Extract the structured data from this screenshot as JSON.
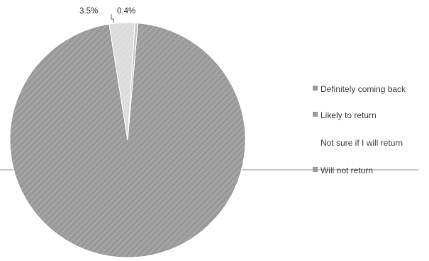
{
  "chart_data": {
    "type": "pie",
    "title": "",
    "start_angle_deg": 5,
    "slices": [
      {
        "label": "Definitely coming back",
        "value": 0.0,
        "display": "",
        "color": "#a5a5a5"
      },
      {
        "label": "Likely to return",
        "value": 96.1,
        "display": "",
        "color": "#9a9a9a"
      },
      {
        "label": "Not sure if I will return",
        "value": 3.5,
        "display": "3.5%",
        "color": "#dcdcdc"
      },
      {
        "label": "Will not return",
        "value": 0.4,
        "display": "0.4%",
        "color": "#c8c8c8"
      }
    ],
    "legend_position": "right"
  },
  "colors": {
    "legend_marker": "#9c9c9c",
    "gridline": "#8c8c8c"
  }
}
